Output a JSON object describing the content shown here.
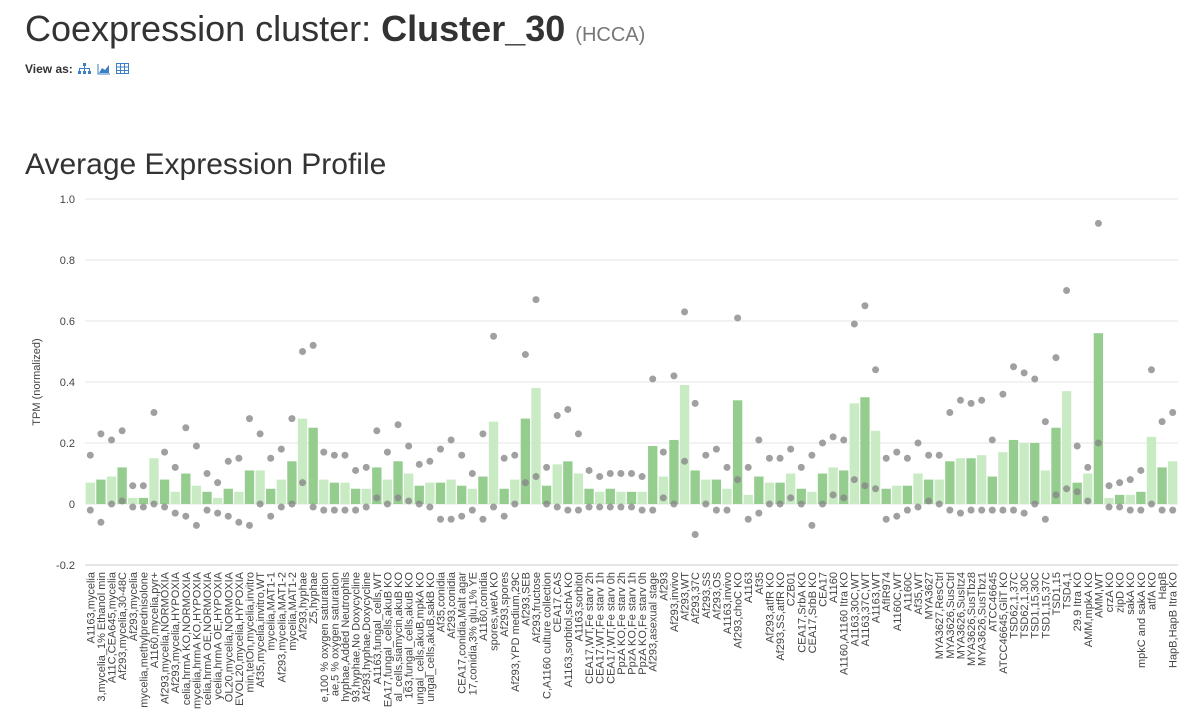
{
  "header": {
    "title_prefix": "Coexpression cluster:",
    "title_name": "Cluster_30",
    "title_method": "(HCCA)",
    "view_as": "View as:"
  },
  "chart_data": {
    "type": "bar",
    "title": "Average Expression Profile",
    "y_label": "TPM (normalized)",
    "colors": [
      "#c8ebc3",
      "#95cd8f"
    ],
    "dot_color": "#888888",
    "ylim": [
      -0.2,
      1.0
    ],
    "yticks": [
      -0.2,
      0,
      0.2,
      0.4,
      0.6,
      0.8,
      {
        "value": 1.0,
        "label": "1.0"
      }
    ],
    "grid": true,
    "categories": [
      "A1163,mycelia",
      "3,mycelia_1% Ethanol min",
      "A11C,CEA645,mycelia",
      "Af293,mycelia,30-48C",
      "Af293,mycelia",
      "mycelia,methylprednisolone",
      "A1160,mycelia,pyr+",
      "Af293,mycelia,NORMOXIA",
      "Af293,mycelia,HYPOXIA",
      "celia,hrmA KO,NORMOXIA",
      "mycelia,hrmA KO,HYPOXIA",
      "celia,hrmA OE,NORMOXIA",
      "ycelia,hrmA OE,HYPOXIA",
      "OL20,mycelia,NORMOXIA",
      "EVOL20,mycelia,HYPOXIA",
      "min,tetOn,mycelia,invitro",
      "Af35,mycelia,invitro,WT",
      "mycelia,MAT1-1",
      "Af293,mycelia,MAT1-2",
      "mycelia,MAT1-2",
      "Af293,hyphae",
      "Z5,hyphae",
      "e,100 % oxygen saturation",
      "ae,5 % oxygen saturation",
      "hyphae,Added Neutrophils",
      "93,hyphae,No Doxycycline",
      "Af293,hyphae,Doxycycline",
      "A1163,fungal_cells,WT",
      "EA17,fungal_cells,akuB KO",
      "al_cells,siamycin,akuB KO",
      "163,fungal_cells,akuB KO",
      "ungal_cells,akuB,mpkA KO",
      "ungal_cells,akuB,sakB KO",
      "Af35,conidia",
      "Af293,conidia",
      "CEA17,conidia,Malt agar",
      "17,conidia,3% glu,1% YE",
      "A1160,conidia",
      "spores,wetA KO",
      "Af293,spores",
      "Af293,YPD medium,29C",
      "Af293,SEB",
      "Af293,fructose",
      "C,A1160 culture collection",
      "CEA17,CAS",
      "A1163,sorbitol,schA KO",
      "A1163,sorbitol",
      "CEA17,WT,Fe starv 2h",
      "CEA17,WT,Fe starv 1h",
      "CEA17,WT,Fe starv 0h",
      "PpzA KO,Fe starv 2h",
      "PpzA KO,Fe starv 1h",
      "PpzA KO,Fe starv 0h",
      "Af293,asexual stage",
      "Af293",
      "Af293,invivo",
      "Af293,WT",
      "Af293,37C",
      "Af293,SS",
      "Af293,OS",
      "A1163,invivo",
      "Af293,choC KO",
      "A1163",
      "Af35",
      "Af293,atfR KO",
      "Af293,SS,atfR KO",
      "CZB01",
      "CEA17,SrbA KO",
      "CEA17,SrbB KO",
      "CEA17",
      "A1160",
      "A1160,A1160 Itra KO",
      "A1163,30C,WT",
      "A1163,37C,WT",
      "A1163,WT",
      "AfIR974",
      "A1160C,WT",
      "A1160C",
      "Af35,WT",
      "MYA3627",
      "MYA3627,ResCtrl",
      "MYA3626,SusCtrl",
      "MYA3626,SusItz4",
      "MYA3626,SusTbz8",
      "MYA3626,SusTbz1",
      "ATCC46645",
      "ATCC46645,GliT KO",
      "TSD62,1,37C",
      "TSD62,1,30C",
      "TSD1,15,30C",
      "TSD1,15,37C",
      "TSD1,15",
      "TSD4,1",
      "29.9 Itra KO",
      "AMM,mpkA KO",
      "AMM,WT",
      "crzA KO",
      "zipD KO",
      "sakA KO",
      "mpkC and sakA KO",
      "atfA KO",
      "HapB",
      "HapB,HapB Itra KO"
    ],
    "values": [
      0.07,
      0.08,
      0.09,
      0.12,
      0.02,
      0.02,
      0.15,
      0.08,
      0.04,
      0.1,
      0.06,
      0.04,
      0.02,
      0.05,
      0.04,
      0.11,
      0.11,
      0.05,
      0.08,
      0.14,
      0.28,
      0.25,
      0.08,
      0.07,
      0.07,
      0.05,
      0.05,
      0.12,
      0.08,
      0.14,
      0.1,
      0.06,
      0.07,
      0.07,
      0.08,
      0.06,
      0.05,
      0.09,
      0.27,
      0.05,
      0.08,
      0.28,
      0.38,
      0.06,
      0.13,
      0.14,
      0.1,
      0.05,
      0.04,
      0.05,
      0.04,
      0.04,
      0.04,
      0.19,
      0.09,
      0.21,
      0.39,
      0.11,
      0.08,
      0.08,
      0.05,
      0.34,
      0.03,
      0.09,
      0.07,
      0.07,
      0.1,
      0.05,
      0.04,
      0.1,
      0.12,
      0.11,
      0.33,
      0.35,
      0.24,
      0.05,
      0.06,
      0.06,
      0.1,
      0.08,
      0.08,
      0.14,
      0.15,
      0.15,
      0.16,
      0.09,
      0.17,
      0.21,
      0.2,
      0.2,
      0.11,
      0.25,
      0.37,
      0.07,
      0.1,
      0.56,
      0.02,
      0.03,
      0.03,
      0.04,
      0.22,
      0.12,
      0.14
    ],
    "max_values": [
      0.16,
      0.23,
      0.21,
      0.24,
      0.06,
      0.06,
      0.3,
      0.17,
      0.12,
      0.25,
      0.19,
      0.1,
      0.07,
      0.14,
      0.15,
      0.28,
      0.23,
      0.15,
      0.18,
      0.28,
      0.5,
      0.52,
      0.17,
      0.16,
      0.16,
      0.11,
      0.12,
      0.24,
      0.17,
      0.26,
      0.19,
      0.13,
      0.14,
      0.18,
      0.21,
      0.16,
      0.1,
      0.23,
      0.55,
      0.15,
      0.16,
      0.49,
      0.67,
      0.12,
      0.29,
      0.31,
      0.23,
      0.11,
      0.09,
      0.1,
      0.1,
      0.1,
      0.09,
      0.41,
      0.17,
      0.42,
      0.63,
      0.33,
      0.16,
      0.18,
      0.12,
      0.61,
      0.12,
      0.21,
      0.15,
      0.15,
      0.18,
      0.12,
      0.16,
      0.2,
      0.22,
      0.21,
      0.59,
      0.65,
      0.44,
      0.15,
      0.17,
      0.15,
      0.2,
      0.16,
      0.16,
      0.3,
      0.34,
      0.33,
      0.34,
      0.21,
      0.36,
      0.45,
      0.43,
      0.41,
      0.27,
      0.48,
      0.7,
      0.19,
      0.12,
      0.92,
      0.06,
      0.07,
      0.08,
      0.11,
      0.44,
      0.27,
      0.3
    ],
    "min_values": [
      -0.02,
      -0.06,
      0.0,
      0.01,
      -0.01,
      -0.01,
      0.0,
      -0.01,
      -0.03,
      -0.04,
      -0.07,
      -0.02,
      -0.03,
      -0.04,
      -0.06,
      -0.07,
      0.0,
      -0.04,
      -0.01,
      0.0,
      0.07,
      -0.01,
      -0.02,
      -0.02,
      -0.02,
      -0.02,
      -0.01,
      0.02,
      0.0,
      0.02,
      0.01,
      0.0,
      -0.01,
      -0.05,
      -0.05,
      -0.04,
      -0.02,
      -0.05,
      -0.01,
      -0.04,
      0.0,
      0.07,
      0.09,
      0.0,
      -0.01,
      -0.02,
      -0.02,
      -0.01,
      -0.01,
      -0.01,
      -0.01,
      -0.01,
      -0.02,
      -0.02,
      0.02,
      0.0,
      0.14,
      -0.1,
      0.0,
      -0.02,
      -0.02,
      0.08,
      -0.05,
      -0.03,
      0.0,
      0.0,
      0.02,
      0.0,
      -0.07,
      0.0,
      0.03,
      0.02,
      0.08,
      0.06,
      0.05,
      -0.05,
      -0.04,
      -0.02,
      -0.01,
      0.01,
      0.0,
      -0.02,
      -0.03,
      -0.02,
      -0.02,
      -0.02,
      -0.02,
      -0.02,
      -0.03,
      0.0,
      -0.05,
      0.03,
      0.05,
      0.04,
      0.01,
      0.2,
      -0.01,
      -0.01,
      -0.02,
      -0.02,
      0.0,
      -0.02,
      -0.02
    ]
  }
}
